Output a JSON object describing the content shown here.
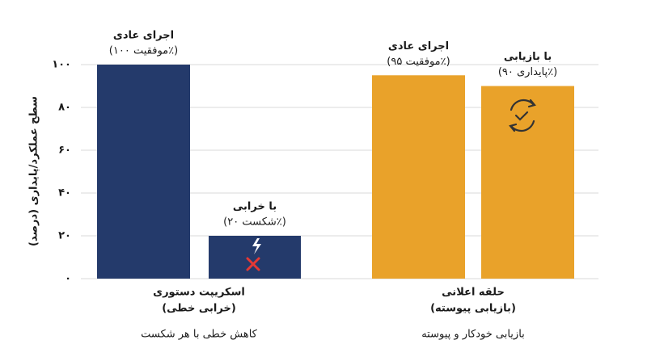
{
  "chart_data": {
    "type": "bar",
    "y_label": "سطح عملکرد/پایداری (درصد)",
    "categories": [
      "اجرای عادی",
      "با خرابی",
      "اجرای عادی",
      "با بازیابی"
    ],
    "values": [
      100,
      20,
      95,
      90
    ],
    "value_labels": [
      "(موفقیت ۱۰۰٪)",
      "(شکست ۲۰٪)",
      "(موفقیت ۹۵٪)",
      "(پایداری ۹۰٪)"
    ],
    "colors": [
      "#243a6b",
      "#243a6b",
      "#e9a22a",
      "#e9a22a"
    ],
    "groups": [
      {
        "label": [
          "اسکریپت دستوری",
          "(خرابی خطی)"
        ],
        "note": "کاهش خطی با هر شکست"
      },
      {
        "label": [
          "حلقه اعلانی",
          "(بازیابی پیوسته)"
        ],
        "note": "بازیابی خودکار و پیوسته"
      }
    ],
    "ylim": [
      0,
      100
    ],
    "yticks": [
      {
        "value": 0,
        "label": "۰"
      },
      {
        "value": 20,
        "label": "۲۰"
      },
      {
        "value": 40,
        "label": "۴۰"
      },
      {
        "value": 60,
        "label": "۶۰"
      },
      {
        "value": 80,
        "label": "۸۰"
      },
      {
        "value": 100,
        "label": "۱۰۰"
      }
    ],
    "grid": true
  }
}
